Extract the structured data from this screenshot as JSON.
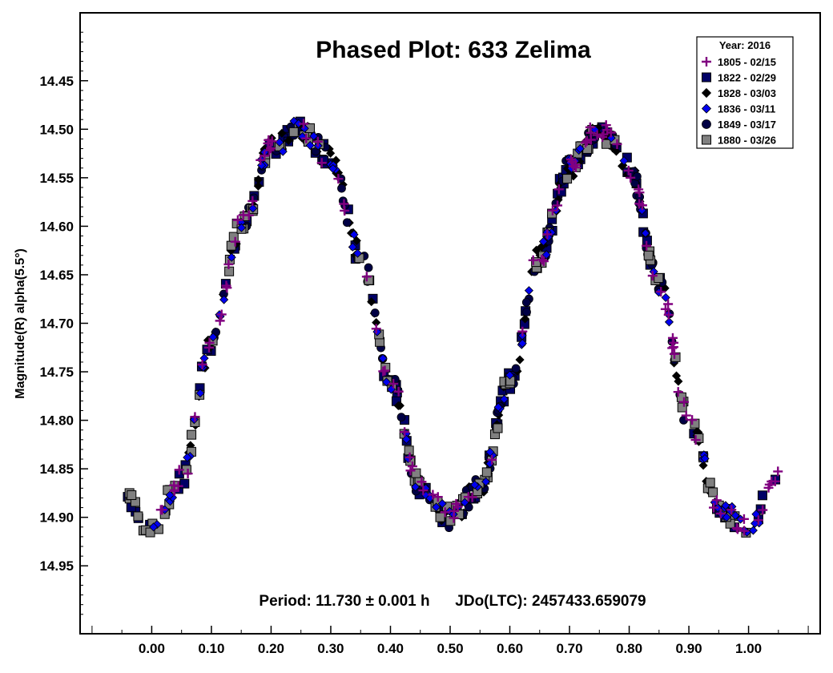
{
  "chart_data": {
    "type": "scatter",
    "title": "Phased Plot: 633 Zelima",
    "xlabel": "",
    "ylabel": "Magnitude(R) alpha(5.5°)",
    "xlim": [
      -0.12,
      1.12
    ],
    "ylim": [
      15.02,
      14.38
    ],
    "y_inverted": true,
    "x_ticks": [
      "0.00",
      "0.10",
      "0.20",
      "0.30",
      "0.40",
      "0.50",
      "0.60",
      "0.70",
      "0.80",
      "0.90",
      "1.00"
    ],
    "y_ticks": [
      "14.45",
      "14.50",
      "14.55",
      "14.60",
      "14.65",
      "14.70",
      "14.75",
      "14.80",
      "14.85",
      "14.90",
      "14.95"
    ],
    "grid": false,
    "legend_position": "top-right",
    "legend_title": "Year: 2016",
    "annotation": "Period: 11.730 ± 0.001 h      JDo(LTC): 2457433.659079",
    "curve": {
      "x": [
        -0.05,
        0.0,
        0.05,
        0.1,
        0.15,
        0.2,
        0.25,
        0.3,
        0.35,
        0.4,
        0.45,
        0.5,
        0.55,
        0.6,
        0.65,
        0.7,
        0.75,
        0.8,
        0.85,
        0.9,
        0.95,
        1.0,
        1.05
      ],
      "y": [
        14.88,
        14.91,
        14.86,
        14.72,
        14.6,
        14.52,
        14.5,
        14.53,
        14.63,
        14.76,
        14.87,
        14.9,
        14.87,
        14.76,
        14.63,
        14.54,
        14.5,
        14.54,
        14.66,
        14.8,
        14.89,
        14.91,
        14.86
      ]
    },
    "series": [
      {
        "name": "1805 - 02/15",
        "marker": "plus",
        "color": "#800080",
        "x_range": [
          0.0,
          1.05
        ]
      },
      {
        "name": "1822 - 02/29",
        "marker": "square",
        "color": "#000066",
        "x_range": [
          -0.05,
          1.05
        ]
      },
      {
        "name": "1828 - 03/03",
        "marker": "diamond",
        "color": "#000000",
        "x_range": [
          0.05,
          0.95
        ]
      },
      {
        "name": "1836 - 03/11",
        "marker": "diamond",
        "color": "#0000ee",
        "x_range": [
          0.0,
          1.05
        ]
      },
      {
        "name": "1849 - 03/17",
        "marker": "circle",
        "color": "#000044",
        "x_range": [
          0.1,
          0.9
        ]
      },
      {
        "name": "1880 - 03/26",
        "marker": "square",
        "color": "#808080",
        "x_range": [
          -0.05,
          1.0
        ]
      }
    ]
  }
}
